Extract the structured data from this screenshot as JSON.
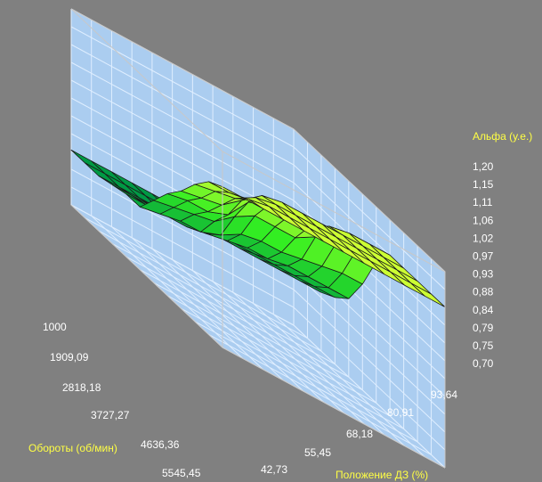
{
  "chart_data": {
    "type": "surface3d",
    "z_label": "Альфа (у.е.)",
    "x_label": "Положение ДЗ (%)",
    "y_label": "Обороты (об/мин)",
    "z_ticks": [
      "1,20",
      "1,15",
      "1,11",
      "1,06",
      "1,02",
      "0,97",
      "0,93",
      "0,88",
      "0,84",
      "0,79",
      "0,75",
      "0,70"
    ],
    "x_ticks": [
      "42,73",
      "55,45",
      "68,18",
      "80,91",
      "93,64"
    ],
    "y_ticks": [
      "1000",
      "1909,09",
      "2818,18",
      "3727,27",
      "4636,36",
      "5545,45"
    ],
    "zlim": [
      0.7,
      1.2
    ],
    "grid": true,
    "colors": {
      "background": "#808080",
      "wall": "#abcdf0",
      "grid": "#dfeeff",
      "frame": "#c8c8c8",
      "tick_text": "#ffffff",
      "axis_title": "#ffff44",
      "surface_high": "#ccff33",
      "surface_mid": "#33ee22",
      "surface_low": "#009944",
      "mesh": "#1a1a1a"
    },
    "surface": {
      "rpm_rows": 12,
      "throttle_cols": 12,
      "note_values_in_alpha_units": true,
      "z": [
        [
          1.11,
          1.11,
          1.11,
          1.11,
          1.11,
          1.11,
          1.11,
          1.11,
          1.11,
          1.11,
          1.11,
          1.11
        ],
        [
          1.09,
          1.09,
          1.1,
          1.11,
          1.11,
          1.11,
          1.11,
          1.11,
          1.11,
          1.11,
          1.11,
          1.11
        ],
        [
          1.05,
          1.06,
          1.07,
          1.1,
          1.11,
          1.11,
          1.11,
          1.11,
          1.11,
          1.11,
          1.11,
          1.11
        ],
        [
          1.0,
          1.01,
          1.02,
          1.06,
          1.1,
          1.11,
          1.11,
          1.11,
          1.11,
          1.11,
          1.11,
          1.11
        ],
        [
          0.96,
          0.97,
          0.97,
          0.99,
          1.05,
          1.07,
          1.07,
          1.07,
          1.1,
          1.11,
          1.11,
          1.11
        ],
        [
          0.91,
          0.92,
          0.93,
          0.94,
          0.98,
          1.01,
          1.01,
          1.01,
          1.04,
          1.05,
          1.06,
          1.06
        ],
        [
          0.86,
          0.87,
          0.88,
          0.88,
          0.9,
          0.93,
          0.94,
          0.94,
          0.95,
          0.96,
          0.97,
          0.97
        ],
        [
          0.86,
          0.86,
          0.86,
          0.86,
          0.87,
          0.88,
          0.89,
          0.89,
          0.9,
          0.9,
          0.9,
          0.9
        ],
        [
          0.85,
          0.85,
          0.85,
          0.85,
          0.85,
          0.86,
          0.87,
          0.87,
          0.87,
          0.87,
          0.87,
          0.87
        ],
        [
          0.84,
          0.84,
          0.84,
          0.84,
          0.85,
          0.85,
          0.85,
          0.85,
          0.85,
          0.85,
          0.85,
          0.85
        ],
        [
          0.84,
          0.84,
          0.84,
          0.84,
          0.84,
          0.84,
          0.84,
          0.84,
          0.84,
          0.84,
          0.84,
          0.84
        ],
        [
          0.84,
          0.84,
          0.84,
          0.84,
          0.84,
          0.84,
          0.84,
          0.84,
          0.84,
          0.84,
          0.84,
          0.84
        ]
      ]
    }
  }
}
